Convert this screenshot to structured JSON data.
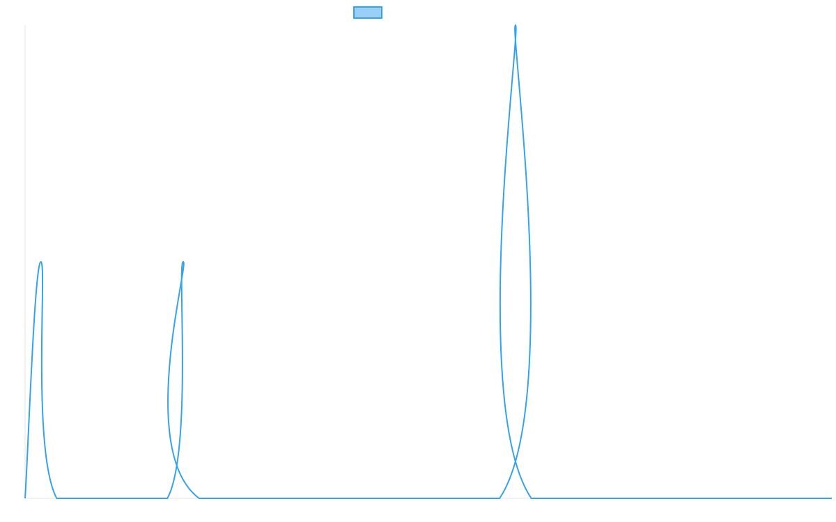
{
  "chart_data": {
    "type": "line",
    "title": "",
    "xlabel": "",
    "ylabel": "",
    "legend": {
      "placement": "top-center",
      "entries": [
        {
          "label": "",
          "color": "#36a2eb",
          "fill": "#9ad0f5"
        }
      ]
    },
    "grid": false,
    "xlim": [
      0,
      51
    ],
    "ylim": [
      0,
      3
    ],
    "series": [
      {
        "color": "#36a2eb",
        "x": [
          0,
          1,
          2,
          9,
          10,
          11,
          30,
          31,
          32,
          51
        ],
        "y": [
          0,
          1.5,
          0,
          0,
          1.5,
          0,
          0,
          3,
          0,
          0
        ]
      }
    ]
  }
}
